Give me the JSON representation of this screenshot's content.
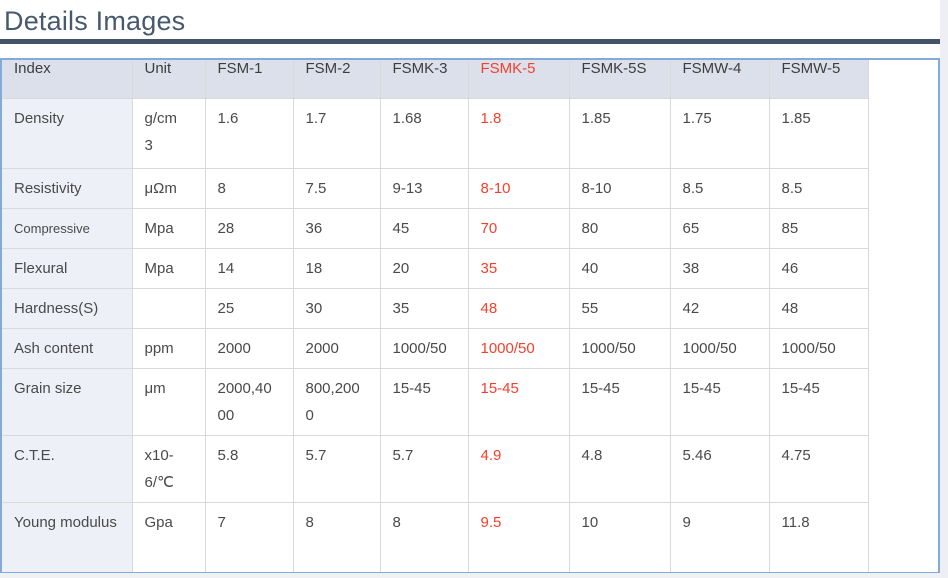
{
  "page": {
    "title": "Details Images"
  },
  "colors": {
    "accent_red": "#f5402e",
    "table_border_blue": "#82abd8",
    "header_bg": "#dbe0eb",
    "label_column_bg": "#edf0f7",
    "title_color": "#48596d",
    "rule_color": "#44536a"
  },
  "table": {
    "columns": [
      "Index",
      "Unit",
      "FSM-1",
      "FSM-2",
      "FSMK-3",
      "FSMK-5",
      "FSMK-5S",
      "FSMW-4",
      "FSMW-5"
    ],
    "highlight_column": "FSMK-5",
    "highlight_column_index": 5,
    "rows": [
      {
        "index": "Density",
        "unit": "g/cm3",
        "values": [
          "1.6",
          "1.7",
          "1.68",
          "1.8",
          "1.85",
          "1.75",
          "1.85"
        ]
      },
      {
        "index": "Resistivity",
        "unit": "μΩm",
        "values": [
          "8",
          "7.5",
          "9-13",
          "8-10",
          "8-10",
          "8.5",
          "8.5"
        ]
      },
      {
        "index": "Compressive",
        "unit": "Mpa",
        "values": [
          "28",
          "36",
          "45",
          "70",
          "80",
          "65",
          "85"
        ]
      },
      {
        "index": "Flexural",
        "unit": "Mpa",
        "values": [
          "14",
          "18",
          "20",
          "35",
          "40",
          "38",
          "46"
        ]
      },
      {
        "index": "Hardness(S)",
        "unit": "",
        "values": [
          "25",
          "30",
          "35",
          "48",
          "55",
          "42",
          "48"
        ]
      },
      {
        "index": "Ash content",
        "unit": "ppm",
        "values": [
          "2000",
          "2000",
          "1000/50",
          "1000/50",
          "1000/50",
          "1000/50",
          "1000/50"
        ]
      },
      {
        "index": "Grain size",
        "unit": "μm",
        "values": [
          "2000,4000",
          "800,2000",
          "15-45",
          "15-45",
          "15-45",
          "15-45",
          "15-45"
        ]
      },
      {
        "index": "C.T.E.",
        "unit": "x10-6/℃",
        "values": [
          "5.8",
          "5.7",
          "5.7",
          "4.9",
          "4.8",
          "5.46",
          "4.75"
        ]
      },
      {
        "index": "Young modulus",
        "unit": "Gpa",
        "values": [
          "7",
          "8",
          "8",
          "9.5",
          "10",
          "9",
          "11.8"
        ]
      }
    ]
  }
}
